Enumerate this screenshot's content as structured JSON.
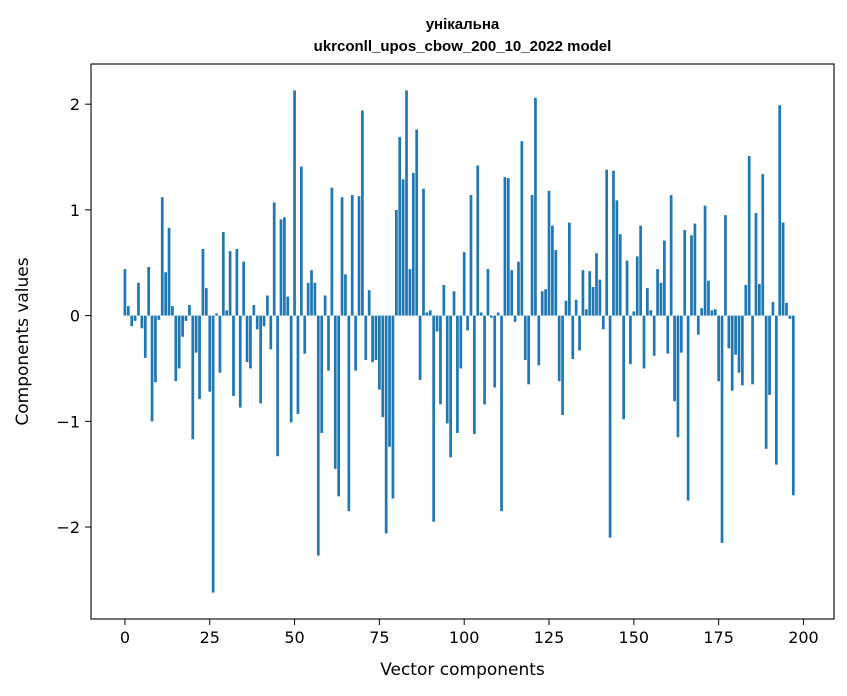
{
  "chart_data": {
    "type": "bar",
    "title_lines": [
      "унікальна",
      "ukrconll_upos_cbow_200_10_2022 model"
    ],
    "xlabel": "Vector components",
    "ylabel": "Components values",
    "xlim": [
      -10,
      209
    ],
    "ylim": [
      -2.87,
      2.38
    ],
    "xticks": [
      0,
      25,
      50,
      75,
      100,
      125,
      150,
      175,
      200
    ],
    "yticks": [
      -2,
      -1,
      0,
      1,
      2
    ],
    "ytick_labels": [
      "−2",
      "−1",
      "0",
      "1",
      "2"
    ],
    "bar_color": "#1f77b4",
    "grid": false,
    "values": [
      0.44,
      0.09,
      -0.1,
      -0.05,
      0.31,
      -0.12,
      -0.4,
      0.46,
      -1.0,
      -0.63,
      -0.04,
      1.12,
      0.41,
      0.83,
      0.09,
      -0.62,
      -0.5,
      -0.2,
      -0.05,
      0.1,
      -1.17,
      -0.35,
      -0.79,
      0.63,
      0.26,
      -0.72,
      -2.62,
      0.02,
      -0.54,
      0.79,
      0.05,
      0.61,
      -0.76,
      0.63,
      -0.87,
      0.51,
      -0.44,
      -0.5,
      0.1,
      -0.13,
      -0.83,
      -0.1,
      0.19,
      -0.32,
      1.07,
      -1.33,
      0.91,
      0.93,
      0.18,
      -1.01,
      2.13,
      -0.93,
      1.41,
      -0.36,
      0.31,
      0.43,
      0.31,
      -2.27,
      -1.11,
      0.19,
      -0.52,
      1.21,
      -1.45,
      -1.71,
      1.12,
      0.39,
      -1.85,
      1.14,
      -0.52,
      1.13,
      1.94,
      -0.42,
      0.24,
      -0.44,
      -0.42,
      -0.7,
      -0.96,
      -2.06,
      -1.24,
      -1.73,
      1.0,
      1.69,
      1.29,
      2.13,
      0.44,
      1.35,
      1.76,
      -0.61,
      1.2,
      0.03,
      0.05,
      -1.95,
      -0.15,
      -0.84,
      0.29,
      -1.02,
      -1.34,
      0.23,
      -1.11,
      -0.5,
      0.6,
      -0.14,
      1.14,
      -1.12,
      1.42,
      0.03,
      -0.84,
      0.44,
      -0.02,
      -0.68,
      0.03,
      -1.85,
      1.31,
      1.3,
      0.43,
      -0.06,
      0.51,
      1.65,
      -0.42,
      -0.65,
      1.14,
      2.06,
      -0.47,
      0.23,
      0.25,
      1.18,
      0.85,
      0.62,
      -0.62,
      -0.94,
      0.14,
      0.88,
      -0.41,
      0.15,
      -0.33,
      0.43,
      0.06,
      0.42,
      0.27,
      0.59,
      0.34,
      -0.13,
      1.38,
      -2.1,
      1.37,
      1.09,
      0.77,
      -0.98,
      0.52,
      -0.46,
      0.04,
      0.56,
      0.85,
      -0.5,
      0.26,
      0.05,
      -0.38,
      0.44,
      0.31,
      0.71,
      -0.36,
      1.14,
      -0.81,
      -1.15,
      -0.35,
      0.81,
      -1.75,
      0.76,
      0.87,
      -0.18,
      0.07,
      1.04,
      0.33,
      0.05,
      0.06,
      -0.62,
      -2.15,
      0.95,
      -0.31,
      -0.71,
      -0.37,
      -0.54,
      -0.66,
      0.29,
      1.51,
      -0.65,
      0.97,
      0.3,
      1.34,
      -1.26,
      -0.75,
      0.13,
      -1.41,
      1.99,
      0.88,
      0.12,
      -0.03,
      -1.7
    ]
  }
}
